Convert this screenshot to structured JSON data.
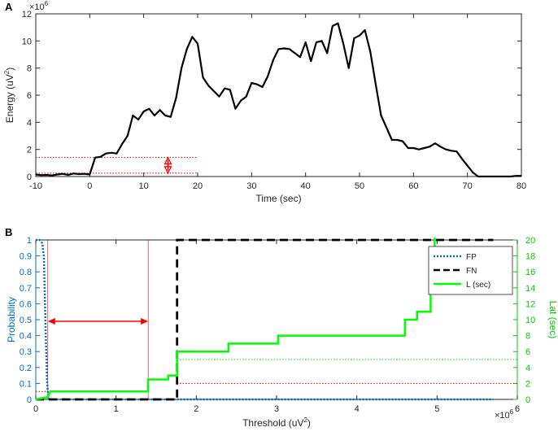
{
  "chart_data": [
    {
      "panel_label": "A",
      "type": "line",
      "xlabel": "Time (sec)",
      "ylabel_main": "Energy (uV",
      "ylabel_sup": "2",
      "ylabel_close": ")",
      "y_multiplier": "×10",
      "y_multiplier_exp": "6",
      "xlim": [
        -10,
        80
      ],
      "ylim": [
        0,
        12
      ],
      "xticks": [
        -10,
        0,
        10,
        20,
        30,
        40,
        50,
        60,
        70,
        80
      ],
      "yticks": [
        0,
        2,
        4,
        6,
        8,
        10,
        12
      ],
      "series": [
        {
          "color": "#000000",
          "x": [
            -10,
            -9,
            -8,
            -7,
            -6,
            -5,
            -4,
            -3,
            -2,
            -1,
            0,
            1,
            2,
            3,
            4,
            5,
            6,
            7,
            8,
            9,
            10,
            11,
            12,
            13,
            14,
            15,
            16,
            17,
            18,
            19,
            20,
            21,
            22,
            23,
            24,
            25,
            26,
            27,
            28,
            29,
            30,
            31,
            32,
            33,
            34,
            35,
            36,
            37,
            38,
            39,
            40,
            41,
            42,
            43,
            44,
            45,
            46,
            47,
            48,
            49,
            50,
            51,
            52,
            53,
            54,
            55,
            56,
            57,
            58,
            59,
            60,
            61,
            62,
            63,
            64,
            65,
            66,
            67,
            68,
            69,
            70,
            71,
            72,
            73,
            74,
            75,
            76,
            77,
            78,
            79,
            80
          ],
          "y": [
            0.15,
            0.1,
            0.12,
            0.08,
            0.15,
            0.2,
            0.12,
            0.22,
            0.18,
            0.2,
            0.15,
            1.4,
            1.45,
            1.7,
            1.75,
            1.7,
            2.4,
            3.0,
            4.5,
            4.2,
            4.8,
            5.0,
            4.5,
            4.9,
            4.5,
            4.4,
            5.8,
            8.0,
            9.4,
            10.3,
            9.8,
            7.3,
            6.7,
            6.3,
            5.9,
            6.5,
            6.4,
            5.0,
            5.6,
            5.9,
            6.9,
            6.8,
            6.6,
            7.4,
            8.6,
            9.4,
            9.45,
            9.4,
            9.1,
            8.8,
            9.9,
            8.5,
            9.9,
            10.0,
            9.1,
            11.1,
            11.3,
            9.8,
            8.0,
            10.2,
            10.4,
            10.8,
            9.2,
            6.8,
            4.5,
            3.6,
            2.7,
            2.7,
            2.6,
            2.1,
            2.1,
            2.0,
            2.1,
            2.2,
            2.45,
            2.2,
            2.0,
            1.9,
            1.85,
            1.3,
            0.8,
            0.3,
            0.0,
            0.0,
            0.0,
            0.0,
            0.0,
            0.0,
            0.0,
            0.05,
            0.05
          ]
        }
      ],
      "reference_lines": [
        {
          "y": 1.4,
          "x_from": -10,
          "x_to": 20,
          "color": "#cc0000",
          "style": "dotted"
        },
        {
          "y": 0.25,
          "x_from": -10,
          "x_to": 20,
          "color": "#cc0000",
          "style": "dotted"
        }
      ],
      "double_arrow": {
        "x": 14.5,
        "y_from": 0.25,
        "y_to": 1.4,
        "color": "#ff0000"
      }
    },
    {
      "panel_label": "B",
      "type": "line",
      "xlabel_main": "Threshold (uV",
      "xlabel_sup": "2",
      "xlabel_close": ")",
      "x_multiplier": "×10",
      "x_multiplier_exp": "6",
      "ylabel_left": "Probability",
      "ylabel_right": "Lat (sec)",
      "xlim": [
        0,
        6
      ],
      "ylim_left": [
        0,
        1
      ],
      "ylim_right": [
        0,
        20
      ],
      "xticks": [
        0,
        1,
        2,
        3,
        4,
        5,
        6
      ],
      "yticks_left": [
        0,
        0.1,
        0.2,
        0.3,
        0.4,
        0.5,
        0.6,
        0.7,
        0.8,
        0.9,
        1
      ],
      "yticks_right": [
        0,
        2,
        4,
        6,
        8,
        10,
        12,
        14,
        16,
        18,
        20
      ],
      "left_axis_color": "#0070c0",
      "right_axis_color": "#00cc00",
      "legend": {
        "position": "top-right",
        "entries": [
          {
            "label": "FP",
            "color": "#0070c0",
            "style": "dotted"
          },
          {
            "label": "FN",
            "color": "#000000",
            "style": "dashed"
          },
          {
            "label": "L (sec)",
            "color": "#00ff00",
            "style": "solid"
          }
        ]
      },
      "series": [
        {
          "name": "FP",
          "axis": "left",
          "color": "#0070c0",
          "x": [
            0,
            0.05,
            0.08,
            0.1,
            0.11,
            0.12,
            0.13,
            0.14,
            0.15,
            0.16,
            5.7
          ],
          "y": [
            1.0,
            1.0,
            0.98,
            0.9,
            0.7,
            0.5,
            0.3,
            0.12,
            0.05,
            0.0,
            0.0
          ]
        },
        {
          "name": "FN",
          "axis": "left",
          "color": "#000000",
          "x": [
            0,
            1.76,
            1.76,
            5.7
          ],
          "y": [
            0,
            0,
            1.0,
            1.0
          ]
        },
        {
          "name": "L (sec)",
          "axis": "right",
          "color": "#00ff00",
          "steps": [
            [
              0.0,
              0
            ],
            [
              0.15,
              0.3
            ],
            [
              0.18,
              1
            ],
            [
              1.4,
              1
            ],
            [
              1.4,
              2.5
            ],
            [
              1.65,
              2.5
            ],
            [
              1.65,
              3
            ],
            [
              1.76,
              3
            ],
            [
              1.76,
              6
            ],
            [
              2.4,
              6
            ],
            [
              2.4,
              7
            ],
            [
              3.02,
              7
            ],
            [
              3.02,
              8
            ],
            [
              4.6,
              8
            ],
            [
              4.6,
              10
            ],
            [
              4.75,
              10
            ],
            [
              4.75,
              11
            ],
            [
              4.92,
              11
            ],
            [
              4.92,
              16
            ],
            [
              4.97,
              16
            ],
            [
              4.97,
              20.3
            ]
          ]
        }
      ],
      "reference_lines": [
        {
          "orientation": "h",
          "axis": "left",
          "value": 0.05,
          "x_from": 0,
          "x_to": 0.15,
          "color": "#cc0000",
          "style": "dotted"
        },
        {
          "orientation": "h",
          "axis": "left",
          "value": 0.1,
          "x_from": 1.76,
          "x_to": 6,
          "color": "#cc0000",
          "style": "dotted"
        },
        {
          "orientation": "h",
          "axis": "right",
          "value": 5,
          "x_from": 1.76,
          "x_to": 6,
          "color": "#00cc00",
          "style": "dotted"
        },
        {
          "orientation": "v",
          "value": 0.15,
          "y_from": 0,
          "y_to": 1,
          "color": "#cc0000",
          "style": "solid"
        },
        {
          "orientation": "v",
          "value": 1.4,
          "y_from": 0,
          "y_to": 1,
          "color": "#cc0000",
          "style": "solid"
        }
      ],
      "double_arrow": {
        "y": 0.49,
        "x_from": 0.15,
        "x_to": 1.4,
        "color": "#ff0000"
      }
    }
  ]
}
